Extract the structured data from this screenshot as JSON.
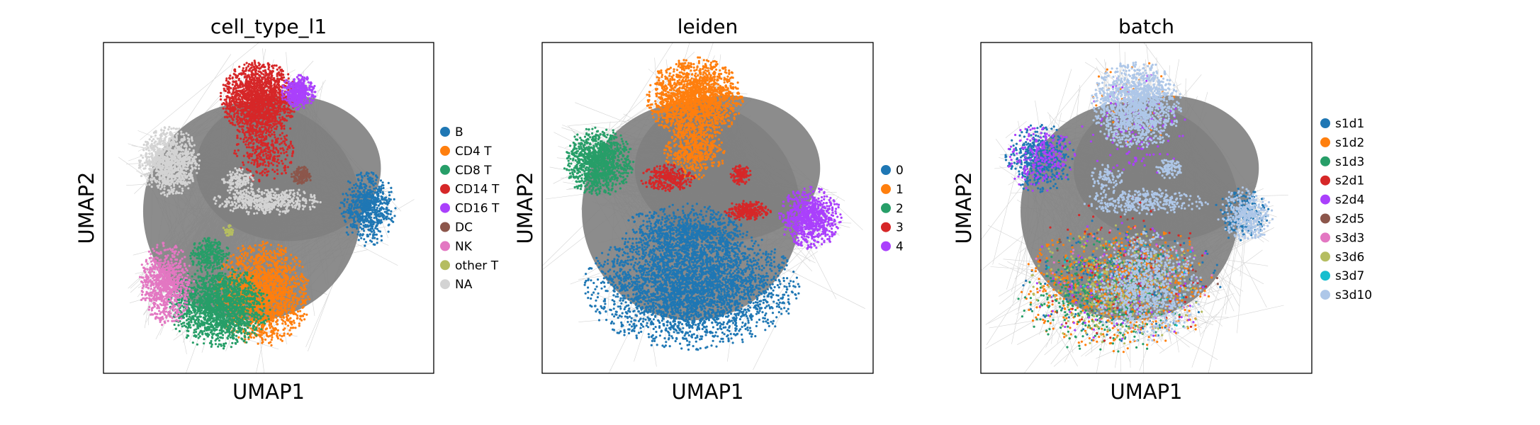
{
  "chart_data": [
    {
      "type": "scatter",
      "title": "cell_type_l1",
      "xlabel": "UMAP1",
      "ylabel": "UMAP2",
      "xticks": false,
      "yticks": false,
      "edges_drawn": true,
      "edge_color": "#808080",
      "legend_position": "right",
      "series": [
        {
          "name": "B",
          "color": "#1f77b4",
          "clusters": [
            {
              "x": 8.0,
              "y": 5.0,
              "rx": 0.8,
              "ry": 1.1,
              "n": 650
            }
          ]
        },
        {
          "name": "CD4 T",
          "color": "#ff7f0e",
          "clusters": [
            {
              "x": 4.8,
              "y": 2.4,
              "rx": 1.4,
              "ry": 1.5,
              "n": 1800
            }
          ]
        },
        {
          "name": "CD8 T",
          "color": "#279e68",
          "clusters": [
            {
              "x": 3.5,
              "y": 2.0,
              "rx": 1.5,
              "ry": 1.2,
              "n": 1700
            },
            {
              "x": 3.2,
              "y": 3.6,
              "rx": 0.6,
              "ry": 0.5,
              "n": 250
            }
          ]
        },
        {
          "name": "CD14 T",
          "color": "#d62728",
          "clusters": [
            {
              "x": 4.7,
              "y": 8.3,
              "rx": 1.1,
              "ry": 1.1,
              "n": 1700
            },
            {
              "x": 4.9,
              "y": 6.8,
              "rx": 0.9,
              "ry": 1.0,
              "n": 350
            }
          ]
        },
        {
          "name": "CD16 T",
          "color": "#aa40fc",
          "clusters": [
            {
              "x": 5.9,
              "y": 8.5,
              "rx": 0.5,
              "ry": 0.5,
              "n": 380
            }
          ]
        },
        {
          "name": "DC",
          "color": "#8c564b",
          "clusters": [
            {
              "x": 6.0,
              "y": 6.0,
              "rx": 0.3,
              "ry": 0.3,
              "n": 150
            }
          ]
        },
        {
          "name": "NK",
          "color": "#e377c2",
          "clusters": [
            {
              "x": 1.9,
              "y": 2.7,
              "rx": 0.8,
              "ry": 1.2,
              "n": 800
            }
          ]
        },
        {
          "name": "other T",
          "color": "#b5bd61",
          "clusters": [
            {
              "x": 3.8,
              "y": 4.3,
              "rx": 0.2,
              "ry": 0.2,
              "n": 40
            }
          ]
        },
        {
          "name": "NA",
          "color": "#d3d3d3",
          "clusters": [
            {
              "x": 2.0,
              "y": 6.4,
              "rx": 0.9,
              "ry": 1.0,
              "n": 1000
            },
            {
              "x": 5.0,
              "y": 5.2,
              "rx": 1.6,
              "ry": 0.4,
              "n": 500
            },
            {
              "x": 4.1,
              "y": 5.8,
              "rx": 0.5,
              "ry": 0.4,
              "n": 150
            }
          ]
        }
      ]
    },
    {
      "type": "scatter",
      "title": "leiden",
      "xlabel": "UMAP1",
      "ylabel": "UMAP2",
      "xticks": false,
      "yticks": false,
      "edges_drawn": true,
      "edge_color": "#808080",
      "legend_position": "right",
      "series": [
        {
          "name": "0",
          "color": "#1f77b4",
          "clusters": [
            {
              "x": 4.5,
              "y": 2.6,
              "rx": 3.1,
              "ry": 1.8,
              "n": 3300
            },
            {
              "x": 4.3,
              "y": 4.2,
              "rx": 1.8,
              "ry": 0.9,
              "n": 800
            }
          ]
        },
        {
          "name": "1",
          "color": "#ff7f0e",
          "clusters": [
            {
              "x": 4.6,
              "y": 8.3,
              "rx": 1.4,
              "ry": 1.2,
              "n": 1800
            },
            {
              "x": 4.6,
              "y": 6.7,
              "rx": 0.9,
              "ry": 0.8,
              "n": 450
            }
          ]
        },
        {
          "name": "2",
          "color": "#279e68",
          "clusters": [
            {
              "x": 1.7,
              "y": 6.4,
              "rx": 1.0,
              "ry": 1.0,
              "n": 1100
            }
          ]
        },
        {
          "name": "3",
          "color": "#d62728",
          "clusters": [
            {
              "x": 3.8,
              "y": 5.9,
              "rx": 0.8,
              "ry": 0.4,
              "n": 300
            },
            {
              "x": 6.2,
              "y": 4.9,
              "rx": 0.7,
              "ry": 0.3,
              "n": 250
            },
            {
              "x": 6.0,
              "y": 6.0,
              "rx": 0.3,
              "ry": 0.3,
              "n": 120
            }
          ]
        },
        {
          "name": "4",
          "color": "#aa40fc",
          "clusters": [
            {
              "x": 8.1,
              "y": 4.7,
              "rx": 0.9,
              "ry": 0.9,
              "n": 800
            }
          ]
        }
      ]
    },
    {
      "type": "scatter",
      "title": "batch",
      "xlabel": "UMAP1",
      "ylabel": "UMAP2",
      "xticks": false,
      "yticks": false,
      "edges_drawn": true,
      "edge_color": "#808080",
      "legend_position": "right",
      "series": [
        {
          "name": "s1d1",
          "color": "#1f77b4",
          "clusters": [
            {
              "x": 1.8,
              "y": 6.5,
              "rx": 1.0,
              "ry": 1.0,
              "n": 450
            },
            {
              "x": 7.9,
              "y": 4.8,
              "rx": 0.8,
              "ry": 0.8,
              "n": 200
            },
            {
              "x": 4.2,
              "y": 2.8,
              "rx": 3.0,
              "ry": 1.8,
              "n": 300
            }
          ]
        },
        {
          "name": "s1d2",
          "color": "#ff7f0e",
          "clusters": [
            {
              "x": 4.2,
              "y": 2.6,
              "rx": 2.9,
              "ry": 1.9,
              "n": 700
            },
            {
              "x": 4.6,
              "y": 8.2,
              "rx": 1.4,
              "ry": 1.2,
              "n": 60
            }
          ]
        },
        {
          "name": "s1d3",
          "color": "#279e68",
          "clusters": [
            {
              "x": 3.8,
              "y": 2.4,
              "rx": 2.6,
              "ry": 1.8,
              "n": 450
            }
          ]
        },
        {
          "name": "s2d1",
          "color": "#d62728",
          "clusters": [
            {
              "x": 4.4,
              "y": 3.0,
              "rx": 2.8,
              "ry": 2.2,
              "n": 120
            }
          ]
        },
        {
          "name": "s2d4",
          "color": "#aa40fc",
          "clusters": [
            {
              "x": 1.8,
              "y": 6.5,
              "rx": 1.0,
              "ry": 1.0,
              "n": 220
            },
            {
              "x": 4.6,
              "y": 7.5,
              "rx": 1.5,
              "ry": 1.6,
              "n": 180
            },
            {
              "x": 4.2,
              "y": 2.7,
              "rx": 2.9,
              "ry": 1.9,
              "n": 120
            }
          ]
        },
        {
          "name": "s2d5",
          "color": "#8c564b",
          "clusters": [
            {
              "x": 4.4,
              "y": 3.0,
              "rx": 2.8,
              "ry": 2.0,
              "n": 30
            }
          ]
        },
        {
          "name": "s3d3",
          "color": "#e377c2",
          "clusters": [
            {
              "x": 4.2,
              "y": 3.0,
              "rx": 2.8,
              "ry": 2.0,
              "n": 60
            }
          ]
        },
        {
          "name": "s3d6",
          "color": "#b5bd61",
          "clusters": [
            {
              "x": 4.2,
              "y": 2.6,
              "rx": 2.6,
              "ry": 1.8,
              "n": 350
            }
          ]
        },
        {
          "name": "s3d7",
          "color": "#17becf",
          "clusters": [
            {
              "x": 4.2,
              "y": 3.0,
              "rx": 2.8,
              "ry": 2.0,
              "n": 25
            }
          ]
        },
        {
          "name": "s3d10",
          "color": "#aec7e8",
          "clusters": [
            {
              "x": 4.7,
              "y": 8.1,
              "rx": 1.3,
              "ry": 1.3,
              "n": 1400
            },
            {
              "x": 5.0,
              "y": 5.2,
              "rx": 1.8,
              "ry": 0.4,
              "n": 350
            },
            {
              "x": 5.0,
              "y": 2.6,
              "rx": 1.6,
              "ry": 1.6,
              "n": 900
            },
            {
              "x": 8.0,
              "y": 4.8,
              "rx": 0.8,
              "ry": 0.8,
              "n": 350
            },
            {
              "x": 5.7,
              "y": 6.2,
              "rx": 0.4,
              "ry": 0.3,
              "n": 100
            },
            {
              "x": 3.8,
              "y": 5.9,
              "rx": 0.5,
              "ry": 0.4,
              "n": 80
            }
          ]
        }
      ]
    }
  ]
}
